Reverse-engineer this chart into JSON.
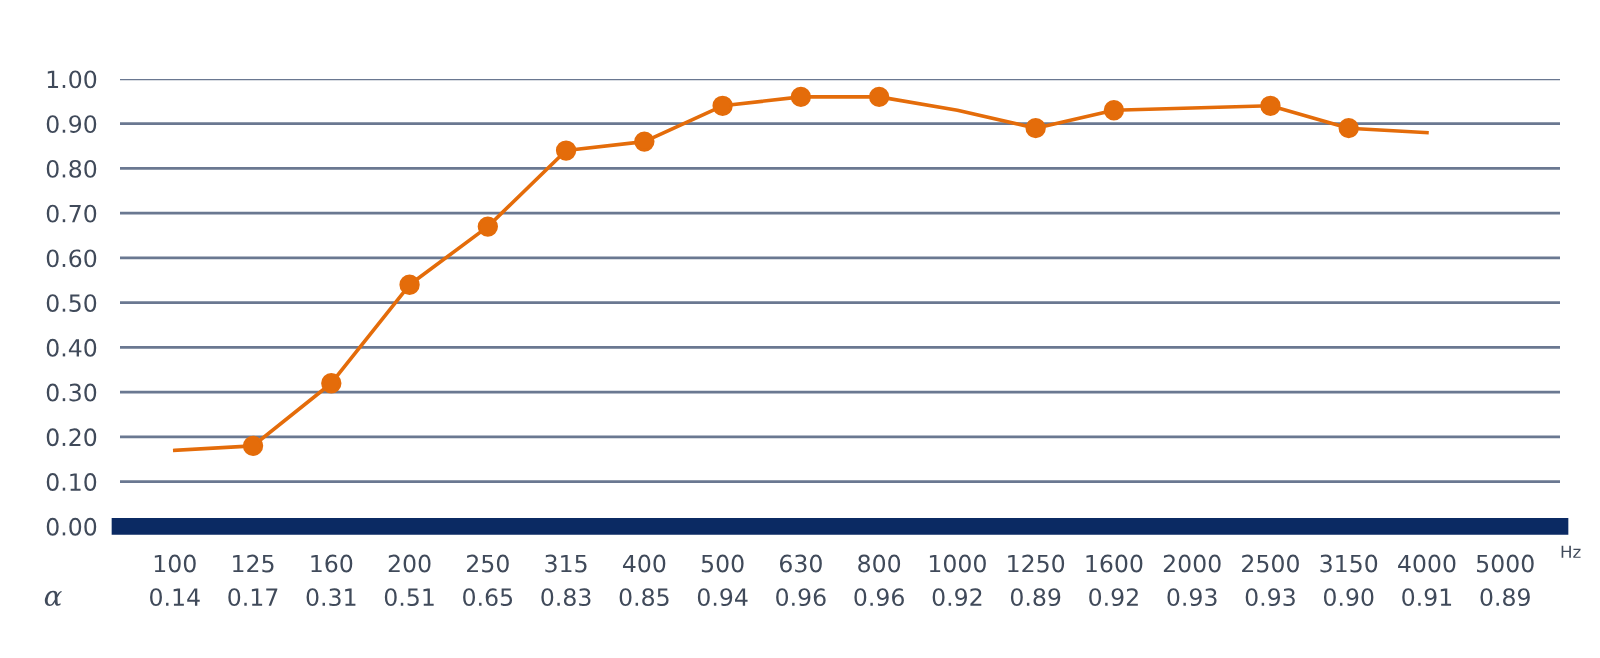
{
  "chart_data": {
    "type": "line",
    "categories": [
      "100\n0.14",
      "125\n0.17",
      "160\n0.31",
      "200\n0.51",
      "250\n0.65",
      "315\n0.83",
      "400\n0.85",
      "500\n0.94",
      "630\n0.96",
      "800\n0.96",
      "1000\n0.92",
      "1250\n0.89",
      "1600\n0.92",
      "2000\n0.93",
      "2500\n0.93",
      "3150\n0.90",
      "4000\n0.91",
      "5000\n0.89"
    ],
    "series": [
      {
        "color": "#e46c0a",
        "values": [
          0.17,
          0.18,
          0.32,
          0.54,
          0.67,
          0.84,
          0.86,
          0.94,
          0.96,
          0.96,
          0.93,
          0.89,
          0.93,
          0.935,
          0.94,
          0.89,
          0.88,
          null
        ]
      },
      {
        "type": "scatter",
        "color": "#e46c0a",
        "marker": "circle",
        "values": [
          null,
          0.18,
          0.32,
          0.54,
          0.67,
          0.84,
          0.86,
          0.94,
          0.96,
          0.96,
          null,
          0.89,
          0.93,
          null,
          0.94,
          0.89,
          null,
          null
        ]
      }
    ],
    "ylim": [
      0,
      1.0
    ],
    "yticks": [
      {
        "value": 0,
        "label": "0.00"
      },
      {
        "value": 0.1,
        "label": "0.10"
      },
      {
        "value": 0.2,
        "label": "0.20"
      },
      {
        "value": 0.3,
        "label": "0.30"
      },
      {
        "value": 0.4,
        "label": "0.40"
      },
      {
        "value": 0.5,
        "label": "0.50"
      },
      {
        "value": 0.6,
        "label": "0.60"
      },
      {
        "value": 0.7,
        "label": "0.70"
      },
      {
        "value": 0.8,
        "label": "0.80"
      },
      {
        "value": 0.9,
        "label": "0.90"
      },
      {
        "value": 1.0,
        "label": "1.00"
      }
    ],
    "grid": "y",
    "annotations": [
      "α",
      "Hz"
    ]
  }
}
